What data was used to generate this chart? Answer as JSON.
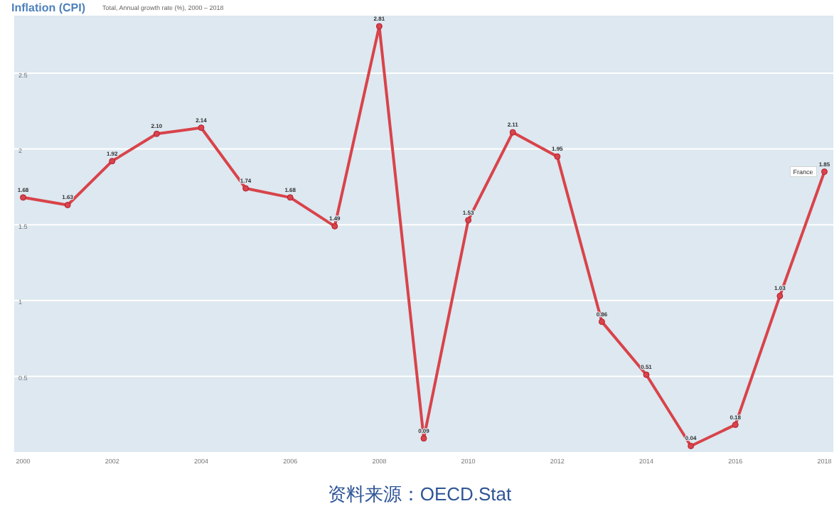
{
  "chart_data": {
    "type": "line",
    "title": "Inflation (CPI)",
    "subtitle": "Total, Annual growth rate (%), 2000 – 2018",
    "x": [
      2000,
      2001,
      2002,
      2003,
      2004,
      2005,
      2006,
      2007,
      2008,
      2009,
      2010,
      2011,
      2012,
      2013,
      2014,
      2015,
      2016,
      2017,
      2018
    ],
    "series": [
      {
        "name": "France",
        "color": "#d9434a",
        "values": [
          1.68,
          1.63,
          1.92,
          2.1,
          2.14,
          1.74,
          1.68,
          1.49,
          2.81,
          0.09,
          1.53,
          2.11,
          1.95,
          0.86,
          0.51,
          0.04,
          0.18,
          1.03,
          1.85
        ],
        "value_labels": [
          "1.68",
          "1.63",
          "1.92",
          "2.10",
          "2.14",
          "1.74",
          "1.68",
          "1.49",
          "2.81",
          "0.09",
          "1.53",
          "2.11",
          "1.95",
          "0.86",
          "0.51",
          "0.04",
          "0.18",
          "1.03",
          "1.85"
        ]
      }
    ],
    "xlim": [
      1999.8,
      2018.2
    ],
    "xticks": [
      2000,
      2002,
      2004,
      2006,
      2008,
      2010,
      2012,
      2014,
      2016,
      2018
    ],
    "ylim": [
      0,
      2.88
    ],
    "yticks": [
      0.5,
      1,
      1.5,
      2,
      2.5
    ],
    "grid": "y",
    "marker": "circle",
    "line_style": "solid",
    "annotations": [
      "资料来源：OECD.Stat"
    ]
  }
}
